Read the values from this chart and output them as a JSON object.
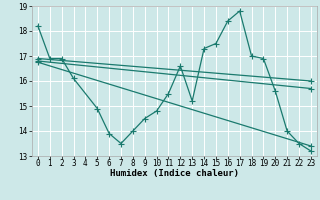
{
  "xlabel": "Humidex (Indice chaleur)",
  "background_color": "#cde8e8",
  "grid_color": "#ffffff",
  "line_color": "#1a7a6e",
  "xlim": [
    -0.5,
    23.5
  ],
  "ylim": [
    13,
    19
  ],
  "yticks": [
    13,
    14,
    15,
    16,
    17,
    18,
    19
  ],
  "xticks": [
    0,
    1,
    2,
    3,
    4,
    5,
    6,
    7,
    8,
    9,
    10,
    11,
    12,
    13,
    14,
    15,
    16,
    17,
    18,
    19,
    20,
    21,
    22,
    23
  ],
  "series": [
    {
      "x": [
        0,
        1,
        2,
        3,
        5,
        6,
        7,
        8,
        9,
        10,
        11,
        12,
        13,
        14,
        15,
        16,
        17,
        18,
        19,
        20,
        21,
        22,
        23
      ],
      "y": [
        18.2,
        16.9,
        16.9,
        16.1,
        14.9,
        13.9,
        13.5,
        14.0,
        14.5,
        14.8,
        15.5,
        16.6,
        15.2,
        17.3,
        17.5,
        18.4,
        18.8,
        17.0,
        16.9,
        15.6,
        14.0,
        13.5,
        13.2
      ]
    },
    {
      "x": [
        0,
        23
      ],
      "y": [
        16.9,
        16.0
      ]
    },
    {
      "x": [
        0,
        23
      ],
      "y": [
        16.8,
        15.7
      ]
    },
    {
      "x": [
        0,
        23
      ],
      "y": [
        16.75,
        13.4
      ]
    }
  ],
  "marker": "+",
  "markersize": 4,
  "linewidth": 0.9,
  "label_fontsize": 6.5,
  "tick_fontsize": 5.5
}
